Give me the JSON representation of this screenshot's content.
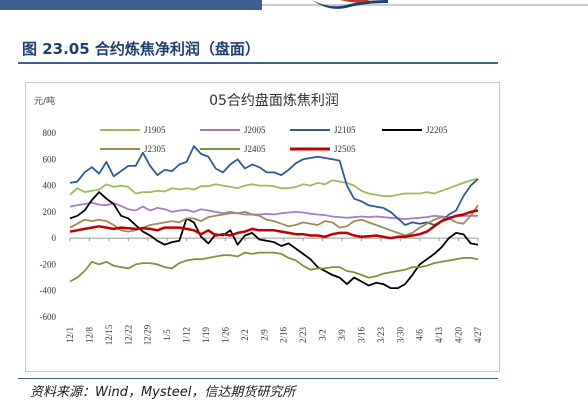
{
  "header": {
    "title": "图 23.05 合约炼焦净利润（盘面）"
  },
  "footer": {
    "source": "资料来源：Wind，Mysteel，信达期货研究所"
  },
  "colors": {
    "brand": "#3e5f8f",
    "title": "#1f3f6e"
  },
  "chart_data": {
    "type": "line",
    "title": "05合约盘面炼焦利润",
    "ylabel": "元/吨",
    "ylim": [
      -600,
      800
    ],
    "yticks": [
      -600,
      -400,
      -200,
      0,
      200,
      400,
      600,
      800
    ],
    "grid": false,
    "legend": "top",
    "xtick_labels": [
      "12/1",
      "12/8",
      "12/15",
      "12/22",
      "12/29",
      "1/5",
      "1/12",
      "1/19",
      "1/26",
      "2/2",
      "2/9",
      "2/16",
      "2/23",
      "3/2",
      "3/9",
      "3/16",
      "3/23",
      "3/30",
      "4/6",
      "4/13",
      "4/20",
      "4/27"
    ],
    "series": [
      {
        "name": "J1905",
        "color": "#9bbb59",
        "values": [
          330,
          380,
          350,
          360,
          370,
          410,
          390,
          400,
          390,
          340,
          350,
          350,
          360,
          355,
          380,
          370,
          380,
          370,
          395,
          395,
          410,
          400,
          390,
          380,
          400,
          410,
          400,
          400,
          395,
          380,
          380,
          390,
          410,
          400,
          420,
          410,
          440,
          430,
          420,
          400,
          360,
          340,
          330,
          320,
          320,
          330,
          340,
          340,
          340,
          350,
          340,
          360,
          380,
          400,
          420,
          440,
          450
        ]
      },
      {
        "name": "J2005",
        "color": "#a77cc0",
        "values": [
          240,
          250,
          260,
          270,
          255,
          250,
          265,
          245,
          220,
          210,
          240,
          210,
          230,
          220,
          200,
          210,
          215,
          200,
          220,
          210,
          200,
          190,
          200,
          190,
          180,
          180,
          180,
          185,
          180,
          190,
          195,
          200,
          195,
          185,
          180,
          175,
          165,
          160,
          155,
          160,
          165,
          160,
          165,
          160,
          155,
          150,
          145,
          150,
          155,
          160,
          170,
          165,
          160,
          165,
          170,
          170,
          170
        ]
      },
      {
        "name": "J2105",
        "color": "#2e5a93",
        "values": [
          420,
          430,
          500,
          540,
          490,
          580,
          470,
          510,
          550,
          550,
          650,
          550,
          480,
          520,
          510,
          560,
          580,
          700,
          640,
          620,
          530,
          500,
          560,
          600,
          530,
          560,
          540,
          500,
          500,
          480,
          520,
          570,
          600,
          610,
          620,
          610,
          600,
          590,
          400,
          300,
          280,
          250,
          240,
          230,
          200,
          150,
          100,
          120,
          110,
          120,
          100,
          130,
          180,
          210,
          320,
          400,
          450
        ]
      },
      {
        "name": "J2205",
        "color": "#000000",
        "values": [
          150,
          170,
          210,
          290,
          350,
          300,
          260,
          170,
          150,
          100,
          50,
          20,
          -20,
          -50,
          -30,
          -20,
          150,
          120,
          10,
          -40,
          30,
          20,
          60,
          -50,
          20,
          40,
          -10,
          -20,
          -30,
          -60,
          -40,
          -80,
          -120,
          -160,
          -220,
          -250,
          -280,
          -300,
          -350,
          -300,
          -330,
          -360,
          -340,
          -350,
          -380,
          -380,
          -350,
          -280,
          -200,
          -160,
          -120,
          -70,
          0,
          40,
          30,
          -40,
          -50
        ]
      },
      {
        "name": "J2305",
        "color": "#a08a5a",
        "values": [
          80,
          110,
          140,
          130,
          140,
          130,
          100,
          60,
          50,
          60,
          80,
          100,
          110,
          120,
          130,
          120,
          150,
          150,
          130,
          160,
          170,
          180,
          190,
          190,
          200,
          180,
          170,
          140,
          130,
          110,
          90,
          100,
          120,
          110,
          100,
          130,
          120,
          80,
          90,
          130,
          140,
          120,
          100,
          80,
          60,
          40,
          20,
          40,
          80,
          110,
          140,
          160,
          150,
          120,
          110,
          170,
          250
        ]
      },
      {
        "name": "J2405",
        "color": "#76953f",
        "values": [
          -330,
          -300,
          -250,
          -180,
          -200,
          -180,
          -210,
          -220,
          -230,
          -200,
          -190,
          -190,
          -200,
          -220,
          -230,
          -190,
          -170,
          -160,
          -160,
          -150,
          -140,
          -130,
          -130,
          -140,
          -110,
          -120,
          -110,
          -110,
          -110,
          -120,
          -150,
          -170,
          -210,
          -240,
          -230,
          -230,
          -220,
          -220,
          -250,
          -260,
          -280,
          -300,
          -290,
          -270,
          -260,
          -250,
          -240,
          -220,
          -220,
          -210,
          -190,
          -180,
          -170,
          -160,
          -150,
          -150,
          -160
        ]
      },
      {
        "name": "J2505",
        "color": "#c00000",
        "values": [
          50,
          60,
          70,
          80,
          90,
          80,
          70,
          80,
          75,
          70,
          75,
          70,
          60,
          80,
          80,
          80,
          70,
          60,
          30,
          60,
          20,
          30,
          20,
          40,
          50,
          70,
          60,
          60,
          60,
          50,
          40,
          30,
          30,
          20,
          20,
          10,
          30,
          40,
          40,
          20,
          10,
          15,
          20,
          10,
          0,
          10,
          10,
          20,
          30,
          50,
          90,
          130,
          150,
          170,
          180,
          200,
          210
        ]
      }
    ]
  }
}
